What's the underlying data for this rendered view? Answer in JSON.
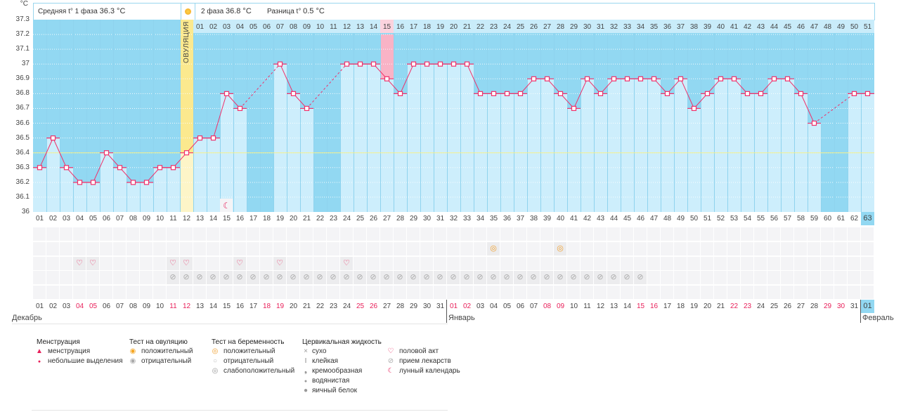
{
  "header": {
    "unit": "°C",
    "phase1_label": "Средняя t° 1 фаза",
    "phase1_value": "36.3 °C",
    "phase2_label": "2 фаза",
    "phase2_value": "36.8 °C",
    "diff_label": "Разница t°",
    "diff_value": "0.5 °C",
    "ovulation_label": "ОВУЛЯЦИЯ"
  },
  "colors": {
    "plot_bg": "#92d8f2",
    "bar": "#cdeefc",
    "line": "#f0306a",
    "ovulation": "#fbe98e",
    "ovulation_low": "#fdf5c8",
    "highlight": "#f9b3c6",
    "coverline": "#f3ef8a",
    "weekend": "#e8205a"
  },
  "chart_data": {
    "type": "line",
    "title": "",
    "ylabel": "°C",
    "ylim": [
      36,
      37.3
    ],
    "y_ticks": [
      "37.3",
      "37.2",
      "37.1",
      "37",
      "36.9",
      "36.8",
      "36.7",
      "36.6",
      "36.5",
      "36.4",
      "36.3",
      "36.2",
      "36.1",
      "36"
    ],
    "coverline": 36.4,
    "ovulation_day": 12,
    "highlight_day": 27,
    "current_day": 63,
    "temperatures": [
      36.3,
      36.5,
      36.3,
      36.2,
      36.2,
      36.4,
      36.3,
      36.2,
      36.2,
      36.3,
      36.3,
      36.4,
      36.5,
      36.5,
      36.8,
      36.7,
      null,
      null,
      37.0,
      36.8,
      36.7,
      null,
      null,
      37.0,
      37.0,
      37.0,
      36.9,
      36.8,
      37.0,
      37.0,
      37.0,
      37.0,
      37.0,
      36.8,
      36.8,
      36.8,
      36.8,
      36.9,
      36.9,
      36.8,
      36.7,
      36.9,
      36.8,
      36.9,
      36.9,
      36.9,
      36.9,
      36.8,
      36.9,
      36.7,
      36.8,
      36.9,
      36.9,
      36.8,
      36.8,
      36.9,
      36.9,
      36.8,
      36.6,
      null,
      null,
      36.8,
      36.8
    ],
    "cycle_days": [
      "01",
      "02",
      "03",
      "04",
      "05",
      "06",
      "07",
      "08",
      "09",
      "10",
      "11",
      "12",
      "13",
      "14",
      "15",
      "16",
      "17",
      "18",
      "19",
      "20",
      "21",
      "22",
      "23",
      "24",
      "25",
      "26",
      "27",
      "28",
      "29",
      "30",
      "31",
      "32",
      "33",
      "34",
      "35",
      "36",
      "37",
      "38",
      "39",
      "40",
      "41",
      "42",
      "43",
      "44",
      "45",
      "46",
      "47",
      "48",
      "49",
      "50",
      "51",
      "52",
      "53",
      "54",
      "55",
      "56",
      "57",
      "58",
      "59",
      "60",
      "61",
      "62",
      "63"
    ],
    "phase2_days": [
      "01",
      "02",
      "03",
      "04",
      "05",
      "06",
      "07",
      "08",
      "09",
      "10",
      "11",
      "12",
      "13",
      "14",
      "15",
      "16",
      "17",
      "18",
      "19",
      "20",
      "21",
      "22",
      "23",
      "24",
      "25",
      "26",
      "27",
      "28",
      "29",
      "30",
      "31",
      "32",
      "33",
      "34",
      "35",
      "36",
      "37",
      "38",
      "39",
      "40",
      "41",
      "42",
      "43",
      "44",
      "45",
      "46",
      "47",
      "48",
      "49",
      "50",
      "51"
    ]
  },
  "calendar": {
    "dates": [
      "01",
      "02",
      "03",
      "04",
      "05",
      "06",
      "07",
      "08",
      "09",
      "10",
      "11",
      "12",
      "13",
      "14",
      "15",
      "16",
      "17",
      "18",
      "19",
      "20",
      "21",
      "22",
      "23",
      "24",
      "25",
      "26",
      "27",
      "28",
      "29",
      "30",
      "31",
      "01",
      "02",
      "03",
      "04",
      "05",
      "06",
      "07",
      "08",
      "09",
      "10",
      "11",
      "12",
      "13",
      "14",
      "15",
      "16",
      "17",
      "18",
      "19",
      "20",
      "21",
      "22",
      "23",
      "24",
      "25",
      "26",
      "27",
      "28",
      "29",
      "30",
      "31",
      "01"
    ],
    "weekend_days": [
      4,
      5,
      11,
      12,
      18,
      19,
      25,
      26,
      32,
      33,
      39,
      40,
      46,
      47,
      53,
      54,
      60,
      61
    ],
    "months": [
      {
        "label": "Декабрь",
        "start_day": 1
      },
      {
        "label": "Январь",
        "start_day": 32
      },
      {
        "label": "Февраль",
        "start_day": 63
      }
    ]
  },
  "events": {
    "moon_days": [
      15
    ],
    "pregnancy_test_positive_days": [
      35,
      40
    ],
    "intercourse_days": [
      4,
      5,
      11,
      12,
      16,
      19,
      24
    ],
    "medication_days": [
      11,
      12,
      13,
      14,
      15,
      16,
      17,
      18,
      19,
      20,
      21,
      22,
      23,
      24,
      25,
      26,
      27,
      28,
      29,
      30,
      31,
      32,
      33,
      34,
      35,
      36,
      37,
      38,
      39,
      40,
      41,
      42,
      43,
      44,
      45,
      46
    ]
  },
  "legend": {
    "menstruation": {
      "title": "Менструация",
      "items": [
        "менструация",
        "небольшие выделения"
      ]
    },
    "ovulation_test": {
      "title": "Тест на овуляцию",
      "items": [
        "положительный",
        "отрицательный"
      ]
    },
    "pregnancy_test": {
      "title": "Тест на беременность",
      "items": [
        "положительный",
        "отрицательный",
        "слабоположительный"
      ]
    },
    "cervical_fluid": {
      "title": "Цервикальная жидкость",
      "items": [
        "сухо",
        "клейкая",
        "кремообразная",
        "водянистая",
        "яичный белок"
      ]
    },
    "other": {
      "items": [
        "половой акт",
        "прием лекарств",
        "лунный календарь"
      ]
    }
  }
}
